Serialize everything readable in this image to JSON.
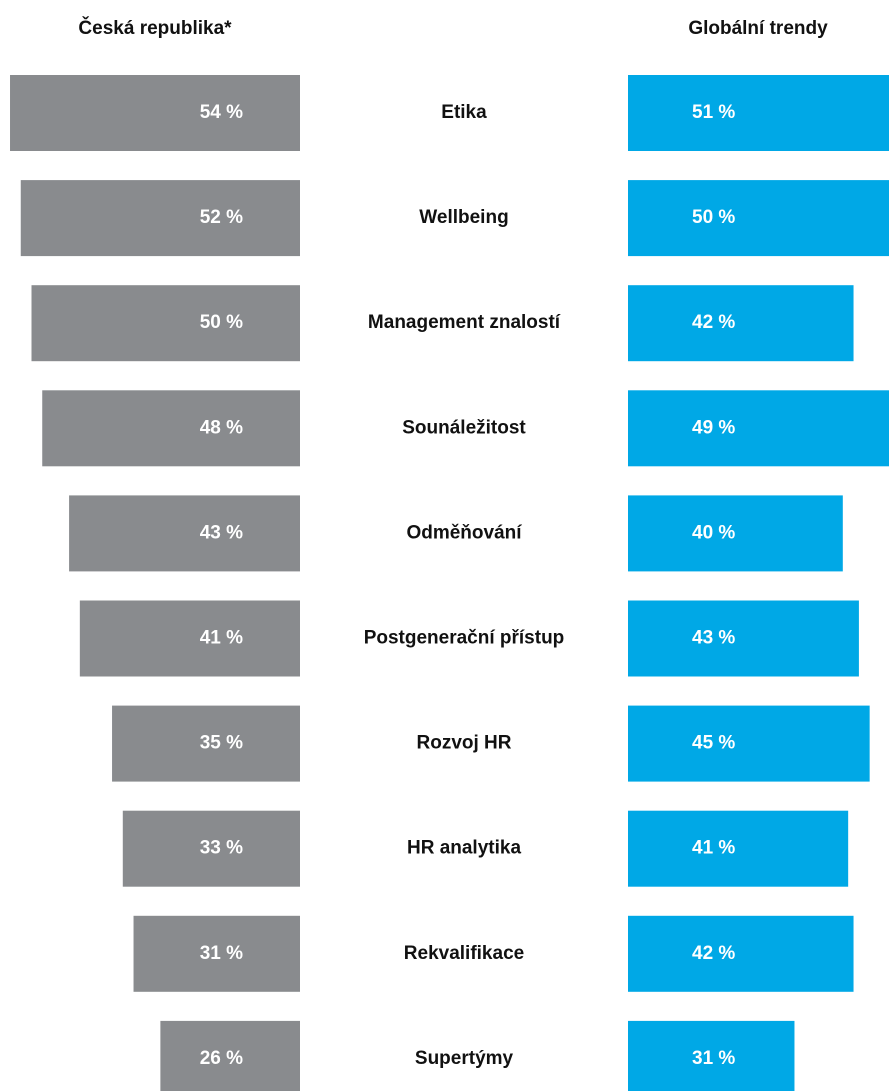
{
  "chart_data": {
    "type": "butterfly",
    "categories": [
      "Etika",
      "Wellbeing",
      "Management znalostí",
      "Sounáležitost",
      "Odměňování",
      "Postgenerační přístup",
      "Rozvoj HR",
      "HR analytika",
      "Rekvalifikace",
      "Supertýmy"
    ],
    "series": [
      {
        "name": "Česká republika*",
        "color": "#898b8e",
        "values": [
          54,
          52,
          50,
          48,
          43,
          41,
          35,
          33,
          31,
          26
        ],
        "value_labels": [
          "54 %",
          "52 %",
          "50 %",
          "48 %",
          "43 %",
          "41 %",
          "35 %",
          "33 %",
          "31 %",
          "26 %"
        ]
      },
      {
        "name": "Globální trendy",
        "color": "#00a8e6",
        "values": [
          51,
          50,
          42,
          49,
          40,
          43,
          45,
          41,
          42,
          31
        ],
        "value_labels": [
          "51 %",
          "50 %",
          "42 %",
          "49 %",
          "40 %",
          "43 %",
          "45 %",
          "41 %",
          "42 %",
          "31 %"
        ]
      }
    ]
  }
}
